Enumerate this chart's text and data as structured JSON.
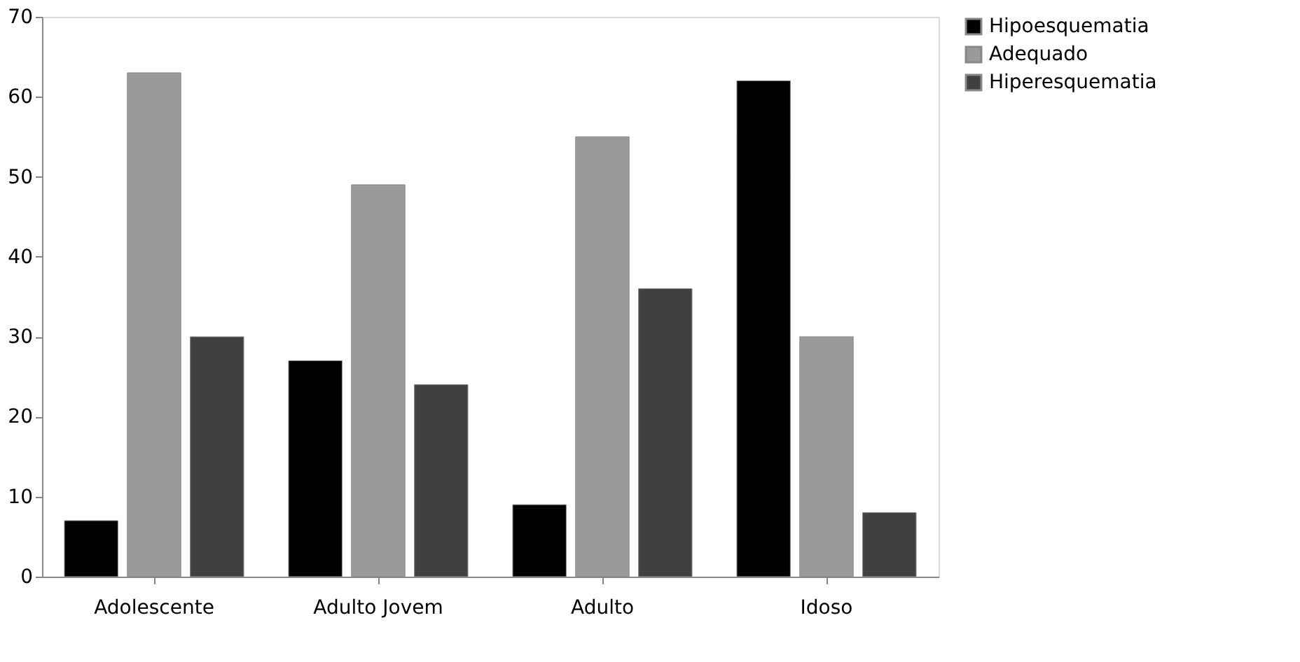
{
  "chart_data": {
    "type": "bar",
    "categories": [
      "Adolescente",
      "Adulto Jovem",
      "Adulto",
      "Idoso"
    ],
    "series": [
      {
        "name": "Hipoesquematia",
        "color": "#000000",
        "values": [
          7,
          27,
          9,
          62
        ]
      },
      {
        "name": "Adequado",
        "color": "#9a9a9a",
        "values": [
          63,
          49,
          55,
          30
        ]
      },
      {
        "name": "Hiperesquematia",
        "color": "#404040",
        "values": [
          30,
          24,
          36,
          8
        ]
      }
    ],
    "ylim": [
      0,
      70
    ],
    "yticks": [
      0,
      10,
      20,
      30,
      40,
      50,
      60,
      70
    ],
    "grid": false,
    "legend": "right"
  }
}
